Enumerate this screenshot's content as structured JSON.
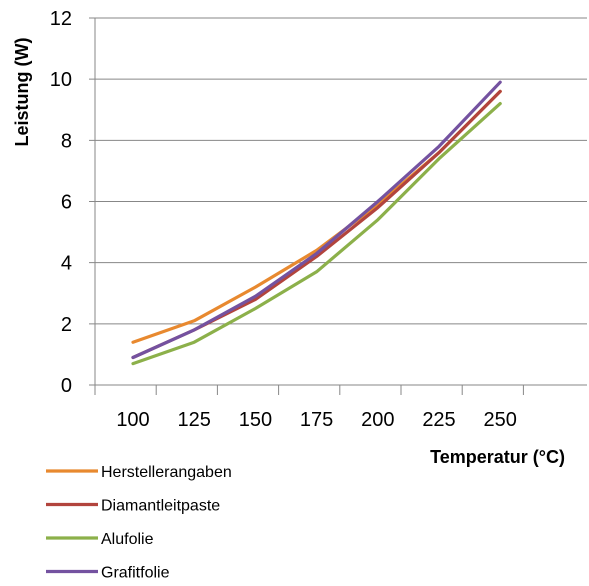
{
  "chart_data": {
    "type": "line",
    "title": "",
    "xlabel": "Temperatur (°C)",
    "ylabel": "Leistung (W)",
    "x": [
      100,
      125,
      150,
      175,
      200,
      225,
      250
    ],
    "x_tick_labels": [
      "100",
      "125",
      "150",
      "175",
      "200",
      "225",
      "250"
    ],
    "ylim": [
      0,
      12
    ],
    "y_tick_labels": [
      "0",
      "2",
      "4",
      "6",
      "8",
      "10",
      "12"
    ],
    "grid": "horizontal",
    "legend_position": "bottom-left",
    "series": [
      {
        "name": "Herstellerangaben",
        "color": "#E8892F",
        "values": [
          1.4,
          2.1,
          3.2,
          4.4,
          5.9,
          7.6,
          9.6
        ]
      },
      {
        "name": "Diamantleitpaste",
        "color": "#B2443D",
        "values": [
          0.9,
          1.8,
          2.8,
          4.2,
          5.8,
          7.6,
          9.6
        ]
      },
      {
        "name": "Alufolie",
        "color": "#8CB04A",
        "values": [
          0.7,
          1.4,
          2.5,
          3.7,
          5.4,
          7.4,
          9.2
        ]
      },
      {
        "name": "Grafitfolie",
        "color": "#7452A0",
        "values": [
          0.9,
          1.8,
          2.9,
          4.3,
          6.0,
          7.8,
          9.9
        ]
      }
    ]
  }
}
